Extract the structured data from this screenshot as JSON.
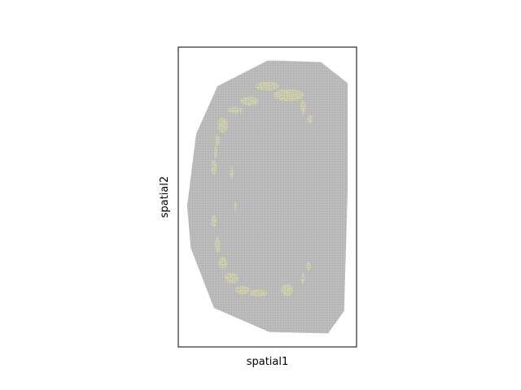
{
  "chart_data": {
    "type": "scatter",
    "title": "",
    "xlabel": "spatial1",
    "ylabel": "spatial2",
    "xticks": [],
    "yticks": [],
    "grid": false,
    "legend": "none",
    "xlim": [
      0,
      1
    ],
    "ylim": [
      0,
      1
    ],
    "colors": {
      "background": "#c0c0c0",
      "grid_lines": "#9a9a9a",
      "highlight": "#ffff3c",
      "frame": "#000000"
    },
    "tissue_outline": {
      "x": [
        0.5,
        0.56,
        0.8,
        0.95,
        0.95,
        0.93,
        0.84,
        0.51,
        0.2,
        0.07,
        0.05,
        0.1,
        0.22
      ],
      "y": [
        0.955,
        0.955,
        0.95,
        0.88,
        0.52,
        0.12,
        0.045,
        0.05,
        0.13,
        0.33,
        0.47,
        0.71,
        0.87
      ]
    },
    "series": [
      {
        "values": [
          {
            "x": 0.5,
            "y": 0.87,
            "w": 0.065,
            "h": 0.015
          },
          {
            "x": 0.62,
            "y": 0.84,
            "w": 0.085,
            "h": 0.02
          },
          {
            "x": 0.4,
            "y": 0.82,
            "w": 0.05,
            "h": 0.015
          },
          {
            "x": 0.32,
            "y": 0.79,
            "w": 0.04,
            "h": 0.012
          },
          {
            "x": 0.25,
            "y": 0.74,
            "w": 0.03,
            "h": 0.025
          },
          {
            "x": 0.22,
            "y": 0.69,
            "w": 0.012,
            "h": 0.02
          },
          {
            "x": 0.21,
            "y": 0.65,
            "w": 0.01,
            "h": 0.02
          },
          {
            "x": 0.2,
            "y": 0.6,
            "w": 0.015,
            "h": 0.025
          },
          {
            "x": 0.7,
            "y": 0.8,
            "w": 0.015,
            "h": 0.025
          },
          {
            "x": 0.74,
            "y": 0.76,
            "w": 0.015,
            "h": 0.015
          },
          {
            "x": 0.3,
            "y": 0.58,
            "w": 0.01,
            "h": 0.02
          },
          {
            "x": 0.32,
            "y": 0.47,
            "w": 0.008,
            "h": 0.015
          },
          {
            "x": 0.2,
            "y": 0.42,
            "w": 0.018,
            "h": 0.02
          },
          {
            "x": 0.22,
            "y": 0.34,
            "w": 0.015,
            "h": 0.025
          },
          {
            "x": 0.25,
            "y": 0.28,
            "w": 0.025,
            "h": 0.02
          },
          {
            "x": 0.3,
            "y": 0.23,
            "w": 0.04,
            "h": 0.018
          },
          {
            "x": 0.36,
            "y": 0.19,
            "w": 0.04,
            "h": 0.015
          },
          {
            "x": 0.45,
            "y": 0.18,
            "w": 0.05,
            "h": 0.012
          },
          {
            "x": 0.61,
            "y": 0.19,
            "w": 0.035,
            "h": 0.02
          },
          {
            "x": 0.73,
            "y": 0.27,
            "w": 0.012,
            "h": 0.015
          },
          {
            "x": 0.7,
            "y": 0.23,
            "w": 0.01,
            "h": 0.02
          }
        ]
      }
    ]
  }
}
